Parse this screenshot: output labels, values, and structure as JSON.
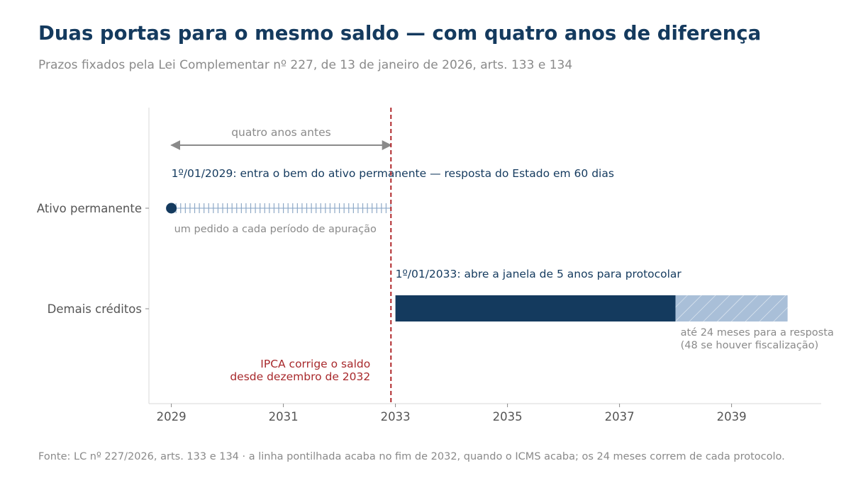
{
  "header": {
    "title": "Duas portas para o mesmo saldo — com quatro anos de diferença",
    "subtitle": "Prazos fixados pela Lei Complementar nº 227, de 13 de janeiro de 2026, arts. 133 e 134"
  },
  "footer": {
    "source": "Fonte: LC nº 227/2026, arts. 133 e 134 · a linha pontilhada acaba no fim de 2032, quando o ICMS acaba; os 24 meses correm de cada protocolo."
  },
  "colors": {
    "navy": "#143a5e",
    "light_blue": "#a9bfd8",
    "red": "#b0282b",
    "grey": "#8a8a8a"
  },
  "chart_data": {
    "type": "timeline",
    "xlim": [
      2028.6,
      2040.6
    ],
    "x_ticks": [
      "2029",
      "2031",
      "2033",
      "2035",
      "2037",
      "2039"
    ],
    "categories": [
      "Ativo permanente",
      "Demais créditos"
    ],
    "reference_line": {
      "x": 2032.92,
      "style": "dashed",
      "color": "#b0282b"
    },
    "series": [
      {
        "category": "Ativo permanente",
        "start_marker": 2029.0,
        "monthly_requests": {
          "from": 2029.0,
          "to": 2032.92,
          "per_year": 12
        },
        "annotation": "1º/01/2029: entra o bem do ativo permanente — resposta do Estado em 60 dias",
        "note": "um pedido a cada período de apuração"
      },
      {
        "category": "Demais créditos",
        "window": {
          "from": 2033.0,
          "to": 2038.0
        },
        "response_tail": {
          "from": 2038.0,
          "to": 2040.0
        },
        "annotation": "1º/01/2033: abre a janela de 5 anos para protocolar",
        "tail_note": [
          "até 24 meses para a resposta",
          "(48 se houver fiscalização)"
        ]
      }
    ],
    "gap_arrow": {
      "from": 2029.0,
      "to": 2032.92,
      "label": "quatro anos antes"
    },
    "ipca_note": [
      "IPCA corrige o saldo",
      "desde dezembro de 2032"
    ]
  }
}
